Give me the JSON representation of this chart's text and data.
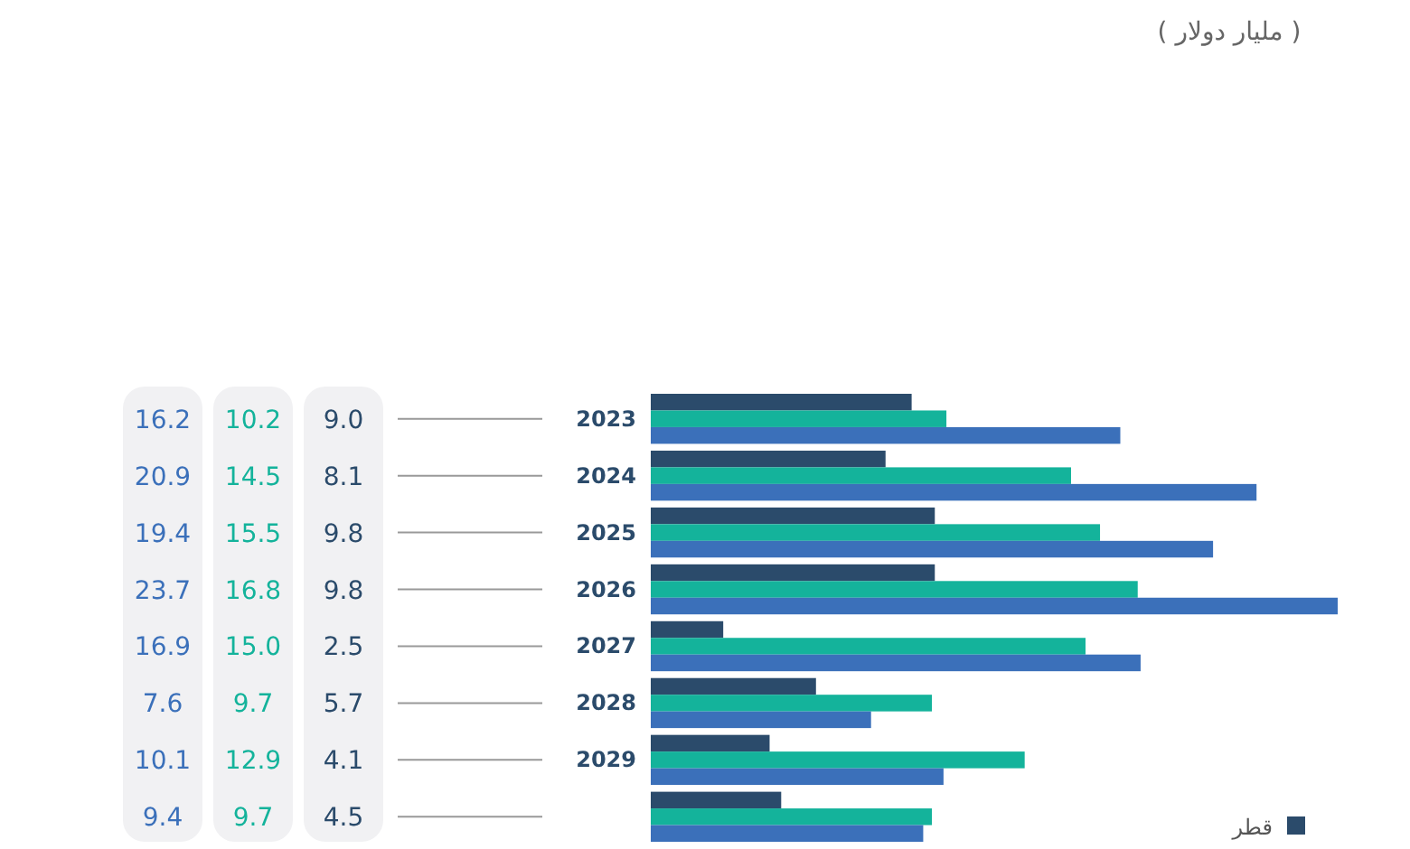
{
  "chart_data": {
    "type": "bar",
    "orientation": "horizontal",
    "subtitle": "( مليار دولار )",
    "categories": [
      "2023",
      "2024",
      "2025",
      "2026",
      "2027",
      "2028",
      "2029",
      null
    ],
    "series": [
      {
        "name": "قطر",
        "color": "#2b4b6b",
        "values": [
          9.0,
          8.1,
          9.8,
          9.8,
          2.5,
          5.7,
          4.1,
          4.5
        ],
        "value_labels": [
          "9.0",
          "8.1",
          "9.8",
          "9.8",
          "2.5",
          "5.7",
          "4.1",
          "4.5"
        ]
      },
      {
        "color": "#14b39b",
        "values": [
          10.2,
          14.5,
          15.5,
          16.8,
          15.0,
          9.7,
          12.9,
          9.7
        ],
        "value_labels": [
          "10.2",
          "14.5",
          "15.5",
          "16.8",
          "15.0",
          "9.7",
          "12.9",
          "9.7"
        ]
      },
      {
        "color": "#3b70ba",
        "values": [
          16.2,
          20.9,
          19.4,
          23.7,
          16.9,
          7.6,
          10.1,
          9.4
        ],
        "value_labels": [
          "16.2",
          "20.9",
          "19.4",
          "23.7",
          "16.9",
          "7.6",
          "10.1",
          "9.4"
        ]
      }
    ],
    "legend": "bottom right"
  }
}
